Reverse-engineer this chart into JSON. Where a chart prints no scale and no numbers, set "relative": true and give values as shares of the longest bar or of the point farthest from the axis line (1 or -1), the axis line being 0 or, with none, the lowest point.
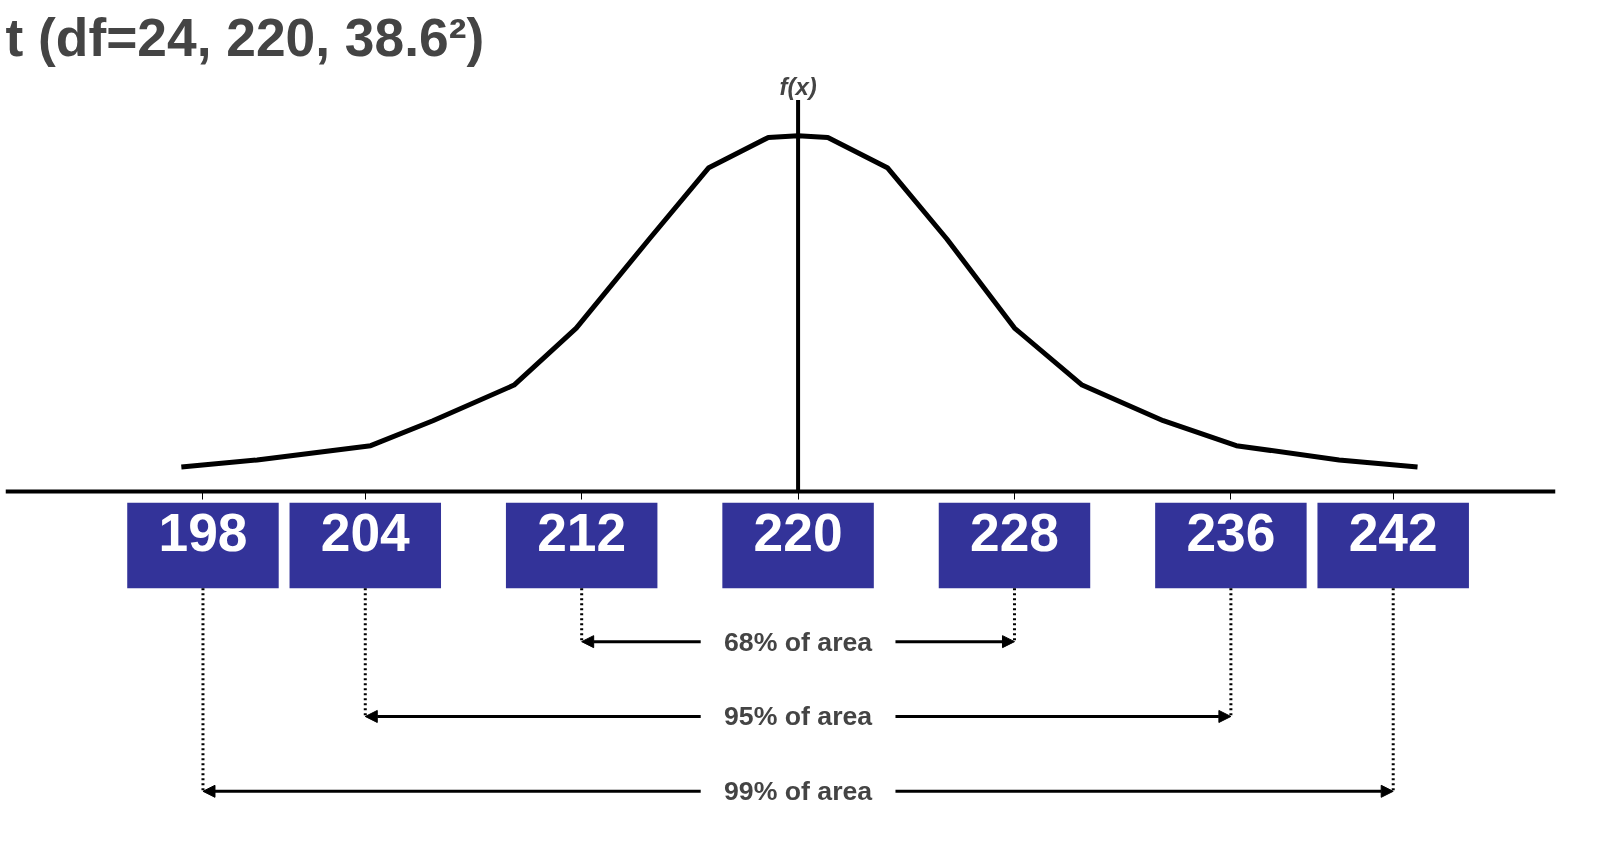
{
  "chart_data": {
    "type": "line",
    "title": "t (df=24, 220, 38.6²)",
    "relative": true,
    "xlim": [
      190.7,
      248
    ],
    "xticks": [
      198,
      204,
      212,
      220,
      228,
      236,
      242
    ],
    "series": [
      {
        "color": "#000000",
        "x": [
          197.2,
          200.0,
          204.2,
          206.5,
          209.5,
          211.8,
          214.5,
          216.7,
          218.9,
          220,
          221.1,
          223.3,
          225.5,
          228,
          230.5,
          233.5,
          236.2,
          240,
          242.9
        ],
        "values": [
          0.07,
          0.09,
          0.13,
          0.2,
          0.3,
          0.46,
          0.71,
          0.91,
          0.995,
          1,
          0.995,
          0.91,
          0.71,
          0.46,
          0.3,
          0.2,
          0.13,
          0.09,
          0.07
        ]
      }
    ],
    "ref_lines": [
      {
        "axis": "x",
        "value": 220,
        "label": "f(x)"
      }
    ],
    "annotations": [
      "68% of area",
      "95% of area",
      "99% of area"
    ],
    "grid": false,
    "marker": "none",
    "line_style": "solid"
  }
}
